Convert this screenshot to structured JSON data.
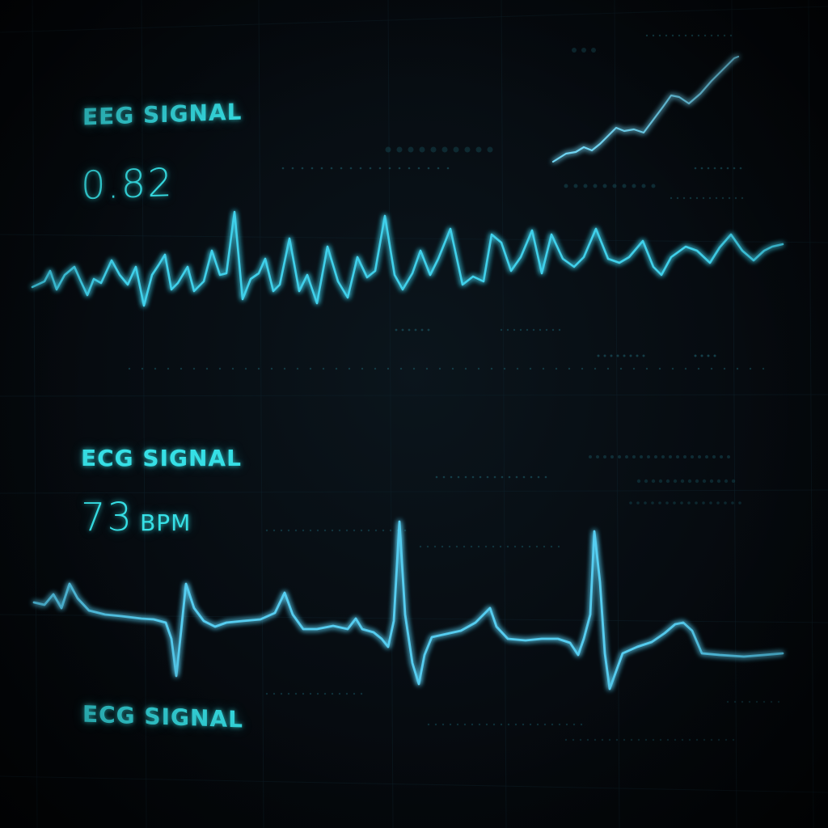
{
  "eeg": {
    "title": "EEG SIGNAL",
    "value": "0.82"
  },
  "ecg": {
    "title": "ECG SIGNAL",
    "value": "73",
    "unit": "BPM",
    "footer_label": "ECG SIGNAL"
  },
  "colors": {
    "background": "#04080c",
    "text_accent": "#36e0e6",
    "trace_eeg": "#3fd0ea",
    "trace_ecg": "#56cdf0",
    "grid": "#0e1f28"
  }
}
